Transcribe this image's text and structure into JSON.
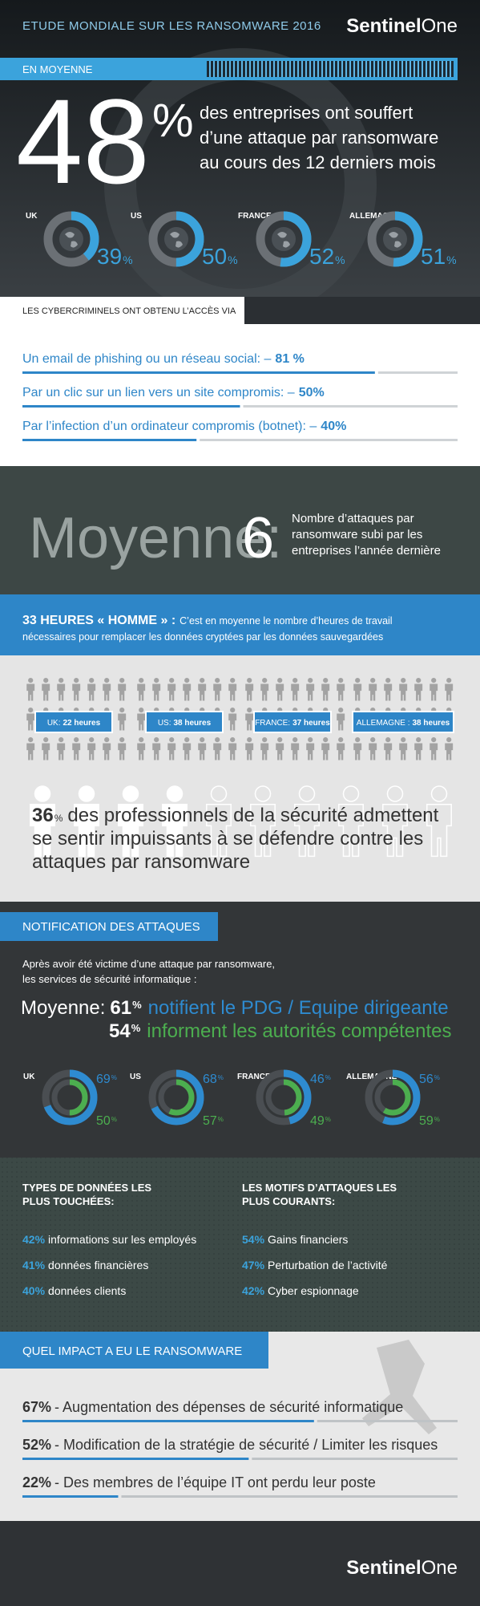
{
  "header": {
    "title": "ETUDE MONDIALE SUR LES RANSOMWARE 2016",
    "logo": {
      "bold": "Sentinel",
      "light": "One"
    }
  },
  "average": {
    "label": "EN MOYENNE",
    "value": 48,
    "unit": "%",
    "text": [
      "des entreprises ont souffert",
      "d’une attaque par ransomware",
      "au cours des 12 derniers mois"
    ]
  },
  "countries": {
    "unit": "%",
    "items": [
      {
        "name": "UK",
        "value": 39
      },
      {
        "name": "US",
        "value": 50
      },
      {
        "name": "FRANCE",
        "value": 52
      },
      {
        "name": "ALLEMAGNE",
        "value": 51
      }
    ]
  },
  "access": {
    "title": "LES CYBERCRIMINELS ONT OBTENU L’ACCÈS VIA",
    "items": [
      {
        "text": "Un email de phishing ou un réseau social: –",
        "value": 81,
        "value_label": "81 %"
      },
      {
        "text": "Par un clic sur un lien vers un site compromis: –",
        "value": 50,
        "value_label": "50%"
      },
      {
        "text": "Par l’infection d’un ordinateur compromis (botnet): –",
        "value": 40,
        "value_label": "40%"
      }
    ]
  },
  "attacks": {
    "label": "Moyenne:",
    "value": 6,
    "text": [
      "Nombre d’attaques par",
      "ransomware subi par les",
      "entreprises l’année dernière"
    ]
  },
  "hours": {
    "title": "33 HEURES « HOMME » :",
    "text": [
      "C’est en moyenne le nombre d’heures de travail",
      "nécessaires pour remplacer les données cryptées par les données sauvegardées"
    ],
    "countries": [
      {
        "name": "UK:",
        "value": "22 heures"
      },
      {
        "name": "US:",
        "value": "38 heures"
      },
      {
        "name": "FRANCE:",
        "value": "37 heures"
      },
      {
        "name": "ALLEMAGNE :",
        "value": "38 heures"
      }
    ]
  },
  "helpless": {
    "value": 36,
    "unit": "%",
    "text": [
      "des professionnels de la sécurité admettent",
      "se sentir impuissants à se défendre contre les",
      "attaques par ransomware"
    ]
  },
  "notification": {
    "title": "NOTIFICATION DES ATTAQUES",
    "intro": [
      "Après avoir été victime d’une attaque par ransomware,",
      "les services de sécurité informatique :"
    ],
    "label": "Moyenne:",
    "unit": "%",
    "ceo": {
      "value": 61,
      "text": "notifient le PDG / Equipe dirigeante"
    },
    "authorities": {
      "value": 54,
      "text": "informent les autorités compétentes"
    },
    "countries": [
      {
        "name": "UK",
        "ceo": 69,
        "authorities": 50
      },
      {
        "name": "US",
        "ceo": 68,
        "authorities": 57
      },
      {
        "name": "FRANCE",
        "ceo": 46,
        "authorities": 49
      },
      {
        "name": "ALLEMAGNE",
        "ceo": 56,
        "authorities": 59
      }
    ]
  },
  "data_types": {
    "title": [
      "TYPES DE DONNÉES LES",
      "PLUS TOUCHÉES:"
    ],
    "items": [
      {
        "value": "42%",
        "text": "informations sur les employés"
      },
      {
        "value": "41%",
        "text": "données financières"
      },
      {
        "value": "40%",
        "text": "données clients"
      }
    ]
  },
  "motives": {
    "title": [
      "LES MOTIFS D’ATTAQUES LES",
      "PLUS COURANTS:"
    ],
    "items": [
      {
        "value": "54%",
        "text": "Gains financiers"
      },
      {
        "value": "47%",
        "text": "Perturbation de l’activité"
      },
      {
        "value": "42%",
        "text": "Cyber espionnage"
      }
    ]
  },
  "impact": {
    "title": "QUEL IMPACT A EU LE RANSOMWARE",
    "unit": "%",
    "items": [
      {
        "value": 67,
        "text": "- Augmentation des dépenses de sécurité informatique"
      },
      {
        "value": 52,
        "text": "- Modification de la stratégie de sécurité / Limiter les risques"
      },
      {
        "value": 22,
        "text": "- Des membres de l’équipe IT ont perdu leur poste"
      }
    ]
  },
  "footer": {
    "logo": {
      "bold": "Sentinel",
      "light": "One"
    }
  }
}
